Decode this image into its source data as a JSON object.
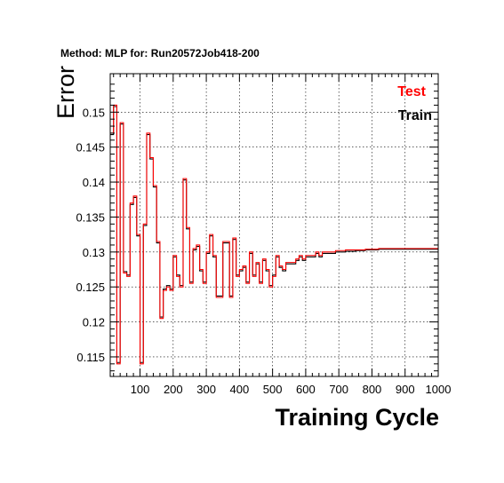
{
  "chart_data": {
    "type": "line",
    "title": "Method: MLP for: Run20572Job418-200",
    "xlabel": "Training Cycle",
    "ylabel": "Error",
    "xlim": [
      10,
      1000
    ],
    "ylim": [
      0.1122,
      0.1555
    ],
    "grid": true,
    "legend_position": "top-right",
    "x_ticks": [
      100,
      200,
      300,
      400,
      500,
      600,
      700,
      800,
      900,
      1000
    ],
    "y_ticks": [
      0.115,
      0.12,
      0.125,
      0.13,
      0.135,
      0.14,
      0.145,
      0.15
    ],
    "y_tick_labels": [
      "0.115",
      "0.12",
      "0.125",
      "0.13",
      "0.135",
      "0.14",
      "0.145",
      "0.15"
    ],
    "x_tick_labels": [
      "100",
      "200",
      "300",
      "400",
      "500",
      "600",
      "700",
      "800",
      "900",
      "1000"
    ],
    "bin_width": 10,
    "series": [
      {
        "name": "Test",
        "color": "#ff0000",
        "x": [
          10,
          20,
          30,
          40,
          50,
          60,
          70,
          80,
          90,
          100,
          110,
          120,
          130,
          140,
          150,
          160,
          170,
          180,
          190,
          200,
          210,
          220,
          230,
          240,
          250,
          260,
          270,
          280,
          290,
          300,
          310,
          320,
          330,
          340,
          350,
          360,
          370,
          380,
          390,
          400,
          410,
          420,
          430,
          440,
          450,
          460,
          470,
          480,
          490,
          500,
          510,
          520,
          530,
          540,
          550,
          560,
          570,
          580,
          590,
          600,
          610,
          620,
          630,
          640,
          650,
          660,
          670,
          680,
          690,
          700,
          710,
          720,
          730,
          740,
          750,
          760,
          770,
          780,
          790,
          800,
          810,
          820,
          830,
          840,
          850,
          860,
          870,
          880,
          890,
          900,
          910,
          920,
          930,
          940,
          950,
          960,
          970,
          980,
          990
        ],
        "y": [
          0.147,
          0.151,
          0.114,
          0.1485,
          0.127,
          0.1265,
          0.137,
          0.138,
          0.1325,
          0.114,
          0.134,
          0.147,
          0.1435,
          0.1395,
          0.1315,
          0.1205,
          0.1245,
          0.125,
          0.1245,
          0.1295,
          0.1265,
          0.125,
          0.1405,
          0.1335,
          0.1255,
          0.1305,
          0.131,
          0.1275,
          0.1255,
          0.13,
          0.1325,
          0.1295,
          0.1235,
          0.1235,
          0.1315,
          0.1315,
          0.1235,
          0.132,
          0.1265,
          0.1275,
          0.128,
          0.1255,
          0.13,
          0.1265,
          0.1285,
          0.1255,
          0.129,
          0.1275,
          0.125,
          0.1265,
          0.1295,
          0.128,
          0.1275,
          0.1285,
          0.1285,
          0.1285,
          0.129,
          0.1295,
          0.129,
          0.1295,
          0.1295,
          0.1295,
          0.13,
          0.1295,
          0.13,
          0.13,
          0.13,
          0.13,
          0.1302,
          0.1302,
          0.1302,
          0.1303,
          0.1303,
          0.1303,
          0.1303,
          0.1303,
          0.1303,
          0.1304,
          0.1304,
          0.1304,
          0.1304,
          0.1305,
          0.1305,
          0.1305,
          0.1305,
          0.1305,
          0.1305,
          0.1305,
          0.1305,
          0.1305,
          0.1305,
          0.1305,
          0.1305,
          0.1305,
          0.1305,
          0.1305,
          0.1305,
          0.1305,
          0.1305
        ]
      },
      {
        "name": "Train",
        "color": "#000000",
        "x": [
          10,
          20,
          30,
          40,
          50,
          60,
          70,
          80,
          90,
          100,
          110,
          120,
          130,
          140,
          150,
          160,
          170,
          180,
          190,
          200,
          210,
          220,
          230,
          240,
          250,
          260,
          270,
          280,
          290,
          300,
          310,
          320,
          330,
          340,
          350,
          360,
          370,
          380,
          390,
          400,
          410,
          420,
          430,
          440,
          450,
          460,
          470,
          480,
          490,
          500,
          510,
          520,
          530,
          540,
          550,
          560,
          570,
          580,
          590,
          600,
          610,
          620,
          630,
          640,
          650,
          660,
          670,
          680,
          690,
          700,
          710,
          720,
          730,
          740,
          750,
          760,
          770,
          780,
          790,
          800,
          810,
          820,
          830,
          840,
          850,
          860,
          870,
          880,
          890,
          900,
          910,
          920,
          930,
          940,
          950,
          960,
          970,
          980,
          990
        ],
        "y": [
          0.1468,
          0.1508,
          0.1142,
          0.1483,
          0.1272,
          0.1267,
          0.1368,
          0.1378,
          0.1323,
          0.1142,
          0.1338,
          0.1468,
          0.1433,
          0.1393,
          0.1313,
          0.1207,
          0.1247,
          0.1252,
          0.1247,
          0.1293,
          0.1267,
          0.1252,
          0.1403,
          0.1333,
          0.1257,
          0.1303,
          0.1308,
          0.1273,
          0.1257,
          0.1298,
          0.1323,
          0.1293,
          0.1237,
          0.1237,
          0.1313,
          0.1313,
          0.1237,
          0.1318,
          0.1267,
          0.1273,
          0.1278,
          0.1257,
          0.1298,
          0.1267,
          0.1283,
          0.1257,
          0.1288,
          0.1273,
          0.1252,
          0.1267,
          0.1293,
          0.1278,
          0.1273,
          0.1283,
          0.1283,
          0.1283,
          0.1288,
          0.1293,
          0.1288,
          0.1293,
          0.1293,
          0.1293,
          0.1298,
          0.1293,
          0.1298,
          0.1298,
          0.1298,
          0.1298,
          0.13,
          0.13,
          0.13,
          0.1301,
          0.1301,
          0.1301,
          0.1302,
          0.1302,
          0.1302,
          0.1303,
          0.1303,
          0.1303,
          0.1303,
          0.1304,
          0.1304,
          0.1304,
          0.1304,
          0.1304,
          0.1304,
          0.1304,
          0.1304,
          0.1304,
          0.1304,
          0.1304,
          0.1304,
          0.1304,
          0.1304,
          0.1304,
          0.1304,
          0.1304,
          0.1304
        ]
      }
    ]
  }
}
